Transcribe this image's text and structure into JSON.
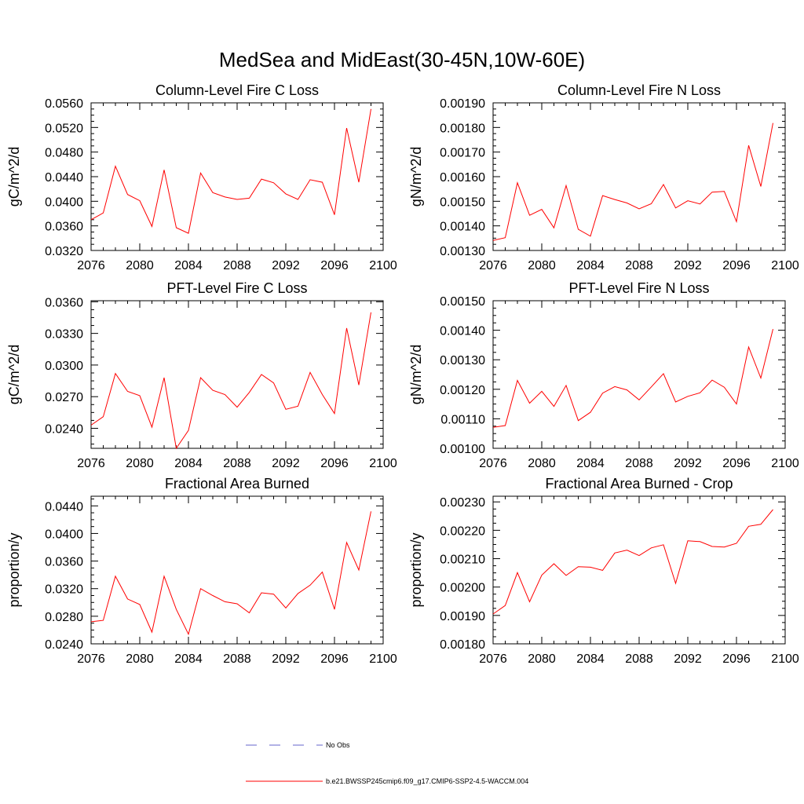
{
  "figure": {
    "title": "MedSea and MidEast(30-45N,10W-60E)"
  },
  "legend": {
    "placement": "bottom-center",
    "entries": [
      {
        "label": "No Obs",
        "color": "#6666cc",
        "style": "dashed"
      },
      {
        "label": "b.e21.BWSSP245cmip6.f09_g17.CMIP6-SSP2-4.5-WACCM.004",
        "color": "#ff0000",
        "style": "solid"
      }
    ]
  },
  "chart_data": [
    {
      "type": "line",
      "title": "Column-Level Fire C Loss",
      "xlabel": "",
      "ylabel": "gC/m^2/d",
      "xlim": [
        2076,
        2100
      ],
      "ylim": [
        0.032,
        0.056
      ],
      "xticks": [
        "2076",
        "2080",
        "2084",
        "2088",
        "2092",
        "2096",
        "2100"
      ],
      "yticks": [
        "0.0320",
        "0.0360",
        "0.0400",
        "0.0440",
        "0.0480",
        "0.0520",
        "0.0560"
      ],
      "series": [
        {
          "color": "#ff0000",
          "x": [
            2076,
            2077,
            2078,
            2079,
            2080,
            2081,
            2082,
            2083,
            2084,
            2085,
            2086,
            2087,
            2088,
            2089,
            2090,
            2091,
            2092,
            2093,
            2094,
            2095,
            2096,
            2097,
            2098,
            2099
          ],
          "y": [
            0.037,
            0.0381,
            0.0457,
            0.0411,
            0.0401,
            0.0359,
            0.0451,
            0.0357,
            0.0348,
            0.0446,
            0.0414,
            0.0407,
            0.0403,
            0.0405,
            0.0436,
            0.043,
            0.0412,
            0.0403,
            0.0435,
            0.0431,
            0.0378,
            0.0519,
            0.0431,
            0.055
          ]
        }
      ]
    },
    {
      "type": "line",
      "title": "Column-Level Fire N Loss",
      "xlabel": "",
      "ylabel": "gN/m^2/d",
      "xlim": [
        2076,
        2100
      ],
      "ylim": [
        0.0013,
        0.0019
      ],
      "xticks": [
        "2076",
        "2080",
        "2084",
        "2088",
        "2092",
        "2096",
        "2100"
      ],
      "yticks": [
        "0.00130",
        "0.00140",
        "0.00150",
        "0.00160",
        "0.00170",
        "0.00180",
        "0.00190"
      ],
      "series": [
        {
          "color": "#ff0000",
          "x": [
            2076,
            2077,
            2078,
            2079,
            2080,
            2081,
            2082,
            2083,
            2084,
            2085,
            2086,
            2087,
            2088,
            2089,
            2090,
            2091,
            2092,
            2093,
            2094,
            2095,
            2096,
            2097,
            2098,
            2099
          ],
          "y": [
            0.001341,
            0.001352,
            0.001575,
            0.001443,
            0.001467,
            0.001392,
            0.001564,
            0.001386,
            0.001358,
            0.001523,
            0.001507,
            0.001493,
            0.001469,
            0.00149,
            0.001568,
            0.001473,
            0.001502,
            0.001489,
            0.001537,
            0.00154,
            0.001417,
            0.001727,
            0.00156,
            0.001818
          ]
        }
      ]
    },
    {
      "type": "line",
      "title": "PFT-Level Fire C Loss",
      "xlabel": "",
      "ylabel": "gC/m^2/d",
      "xlim": [
        2076,
        2100
      ],
      "ylim": [
        0.0221,
        0.0361
      ],
      "xticks": [
        "2076",
        "2080",
        "2084",
        "2088",
        "2092",
        "2096",
        "2100"
      ],
      "yticks": [
        "0.0240",
        "0.0270",
        "0.0300",
        "0.0330",
        "0.0360"
      ],
      "series": [
        {
          "color": "#ff0000",
          "x": [
            2076,
            2077,
            2078,
            2079,
            2080,
            2081,
            2082,
            2083,
            2084,
            2085,
            2086,
            2087,
            2088,
            2089,
            2090,
            2091,
            2092,
            2093,
            2094,
            2095,
            2096,
            2097,
            2098,
            2099
          ],
          "y": [
            0.0243,
            0.0251,
            0.0292,
            0.0275,
            0.0271,
            0.0241,
            0.0288,
            0.0221,
            0.0238,
            0.0288,
            0.0276,
            0.0272,
            0.026,
            0.0274,
            0.0291,
            0.0283,
            0.0258,
            0.0261,
            0.0293,
            0.0272,
            0.0254,
            0.0335,
            0.0281,
            0.035
          ]
        }
      ]
    },
    {
      "type": "line",
      "title": "PFT-Level Fire N Loss",
      "xlabel": "",
      "ylabel": "gN/m^2/d",
      "xlim": [
        2076,
        2100
      ],
      "ylim": [
        0.001,
        0.0015
      ],
      "xticks": [
        "2076",
        "2080",
        "2084",
        "2088",
        "2092",
        "2096",
        "2100"
      ],
      "yticks": [
        "0.00100",
        "0.00110",
        "0.00120",
        "0.00130",
        "0.00140",
        "0.00150"
      ],
      "series": [
        {
          "color": "#ff0000",
          "x": [
            2076,
            2077,
            2078,
            2079,
            2080,
            2081,
            2082,
            2083,
            2084,
            2085,
            2086,
            2087,
            2088,
            2089,
            2090,
            2091,
            2092,
            2093,
            2094,
            2095,
            2096,
            2097,
            2098,
            2099
          ],
          "y": [
            0.001071,
            0.001077,
            0.00123,
            0.001153,
            0.001193,
            0.001142,
            0.001213,
            0.001094,
            0.001122,
            0.001187,
            0.001209,
            0.001198,
            0.001164,
            0.001208,
            0.001253,
            0.001157,
            0.001176,
            0.001188,
            0.001231,
            0.001207,
            0.00115,
            0.001343,
            0.001238,
            0.001404
          ]
        }
      ]
    },
    {
      "type": "line",
      "title": "Fractional Area Burned",
      "xlabel": "",
      "ylabel": "proportion/y",
      "xlim": [
        2076,
        2100
      ],
      "ylim": [
        0.024,
        0.0454
      ],
      "xticks": [
        "2076",
        "2080",
        "2084",
        "2088",
        "2092",
        "2096",
        "2100"
      ],
      "yticks": [
        "0.0240",
        "0.0280",
        "0.0320",
        "0.0360",
        "0.0400",
        "0.0440"
      ],
      "series": [
        {
          "color": "#ff0000",
          "x": [
            2076,
            2077,
            2078,
            2079,
            2080,
            2081,
            2082,
            2083,
            2084,
            2085,
            2086,
            2087,
            2088,
            2089,
            2090,
            2091,
            2092,
            2093,
            2094,
            2095,
            2096,
            2097,
            2098,
            2099
          ],
          "y": [
            0.0272,
            0.0274,
            0.0338,
            0.0305,
            0.0297,
            0.0257,
            0.0338,
            0.029,
            0.0254,
            0.032,
            0.031,
            0.0301,
            0.0298,
            0.0285,
            0.0314,
            0.0312,
            0.0292,
            0.0313,
            0.0325,
            0.0344,
            0.029,
            0.0387,
            0.0347,
            0.0432
          ]
        }
      ]
    },
    {
      "type": "line",
      "title": "Fractional Area Burned - Crop",
      "xlabel": "",
      "ylabel": "proportion/y",
      "xlim": [
        2076,
        2100
      ],
      "ylim": [
        0.0018,
        0.00232
      ],
      "xticks": [
        "2076",
        "2080",
        "2084",
        "2088",
        "2092",
        "2096",
        "2100"
      ],
      "yticks": [
        "0.00180",
        "0.00190",
        "0.00200",
        "0.00210",
        "0.00220",
        "0.00230"
      ],
      "series": [
        {
          "color": "#ff0000",
          "x": [
            2076,
            2077,
            2078,
            2079,
            2080,
            2081,
            2082,
            2083,
            2084,
            2085,
            2086,
            2087,
            2088,
            2089,
            2090,
            2091,
            2092,
            2093,
            2094,
            2095,
            2096,
            2097,
            2098,
            2099
          ],
          "y": [
            0.001905,
            0.001935,
            0.002051,
            0.001948,
            0.002042,
            0.002082,
            0.002041,
            0.002072,
            0.00207,
            0.002059,
            0.00212,
            0.00213,
            0.002111,
            0.002138,
            0.002149,
            0.002013,
            0.002163,
            0.00216,
            0.002143,
            0.002141,
            0.002154,
            0.002214,
            0.002221,
            0.002273
          ]
        }
      ]
    }
  ]
}
